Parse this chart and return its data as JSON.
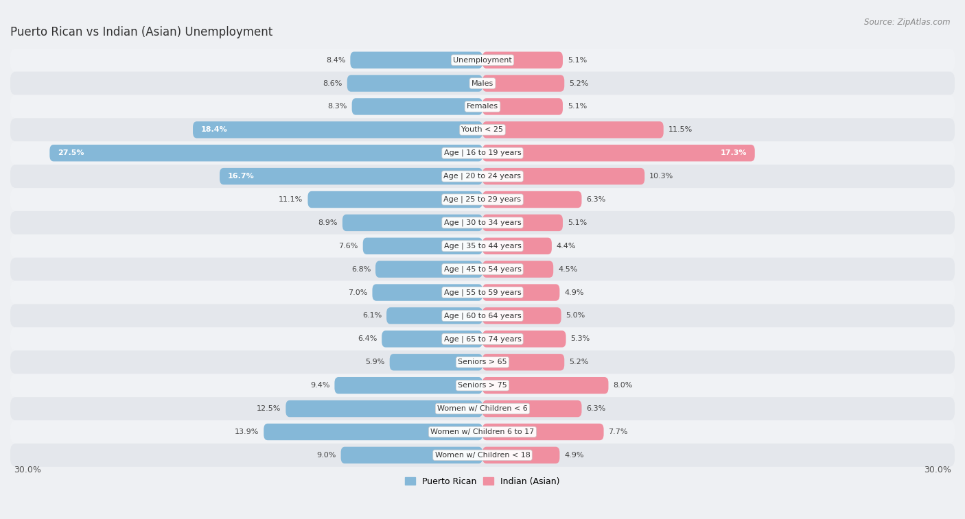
{
  "title": "Puerto Rican vs Indian (Asian) Unemployment",
  "source": "Source: ZipAtlas.com",
  "categories": [
    "Unemployment",
    "Males",
    "Females",
    "Youth < 25",
    "Age | 16 to 19 years",
    "Age | 20 to 24 years",
    "Age | 25 to 29 years",
    "Age | 30 to 34 years",
    "Age | 35 to 44 years",
    "Age | 45 to 54 years",
    "Age | 55 to 59 years",
    "Age | 60 to 64 years",
    "Age | 65 to 74 years",
    "Seniors > 65",
    "Seniors > 75",
    "Women w/ Children < 6",
    "Women w/ Children 6 to 17",
    "Women w/ Children < 18"
  ],
  "puerto_rican": [
    8.4,
    8.6,
    8.3,
    18.4,
    27.5,
    16.7,
    11.1,
    8.9,
    7.6,
    6.8,
    7.0,
    6.1,
    6.4,
    5.9,
    9.4,
    12.5,
    13.9,
    9.0
  ],
  "indian_asian": [
    5.1,
    5.2,
    5.1,
    11.5,
    17.3,
    10.3,
    6.3,
    5.1,
    4.4,
    4.5,
    4.9,
    5.0,
    5.3,
    5.2,
    8.0,
    6.3,
    7.7,
    4.9
  ],
  "puerto_rican_color": "#85b8d8",
  "indian_asian_color": "#f08fa0",
  "bar_height": 0.72,
  "xlim": 30.0,
  "row_bg_light": "#f0f2f5",
  "row_bg_dark": "#e4e7ec",
  "title_fontsize": 12,
  "label_fontsize": 8,
  "value_fontsize": 8,
  "legend_fontsize": 9,
  "axis_tick_fontsize": 9
}
